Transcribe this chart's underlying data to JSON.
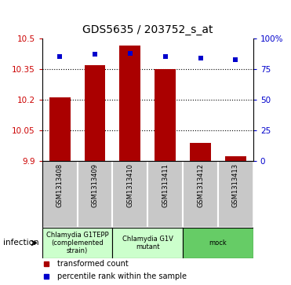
{
  "title": "GDS5635 / 203752_s_at",
  "samples": [
    "GSM1313408",
    "GSM1313409",
    "GSM1313410",
    "GSM1313411",
    "GSM1313412",
    "GSM1313413"
  ],
  "bar_values": [
    10.21,
    10.37,
    10.465,
    10.35,
    9.99,
    9.925
  ],
  "percentile_values": [
    85,
    87,
    88,
    85,
    84,
    83
  ],
  "ylim_left": [
    9.9,
    10.5
  ],
  "ylim_right": [
    0,
    100
  ],
  "yticks_left": [
    9.9,
    10.05,
    10.2,
    10.35,
    10.5
  ],
  "yticks_right": [
    0,
    25,
    50,
    75,
    100
  ],
  "ytick_labels_left": [
    "9.9",
    "10.05",
    "10.2",
    "10.35",
    "10.5"
  ],
  "ytick_labels_right": [
    "0",
    "25",
    "50",
    "75",
    "100%"
  ],
  "bar_color": "#aa0000",
  "dot_color": "#0000cc",
  "group_colors": [
    "#ccffcc",
    "#ccffcc",
    "#66cc66"
  ],
  "group_ranges": [
    [
      0,
      2
    ],
    [
      2,
      4
    ],
    [
      4,
      6
    ]
  ],
  "group_labels": [
    "Chlamydia G1TEPP\n(complemented\nstrain)",
    "Chlamydia G1V\nmutant",
    "mock"
  ],
  "factor_label": "infection",
  "legend_bar_label": "transformed count",
  "legend_dot_label": "percentile rank within the sample",
  "bar_bottom": 9.9,
  "sample_box_color": "#c8c8c8",
  "title_fontsize": 10
}
